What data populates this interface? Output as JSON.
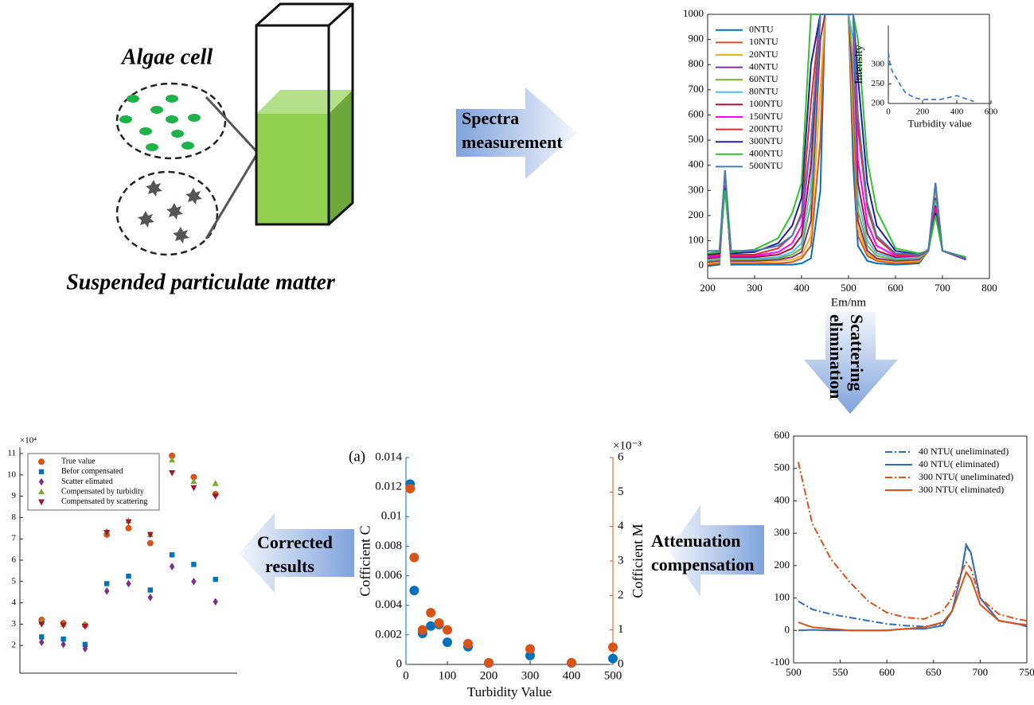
{
  "labels": {
    "algae": "Algae cell",
    "spm": "Suspended particulate matter"
  },
  "arrows": [
    {
      "lines": [
        "Spectra",
        "measurement"
      ]
    },
    {
      "lines": [
        "Scattering",
        "elimination"
      ]
    },
    {
      "lines": [
        "Attenuation",
        "compensation"
      ]
    },
    {
      "lines": [
        "Corrected",
        "results"
      ]
    }
  ],
  "chart_data": [
    {
      "type": "line",
      "xlabel": "Em/nm",
      "xlim": [
        200,
        800
      ],
      "ylim": [
        -50,
        1000
      ],
      "xticks": [
        200,
        300,
        400,
        500,
        600,
        700,
        800
      ],
      "yticks": [
        0,
        100,
        200,
        300,
        400,
        500,
        600,
        700,
        800,
        900,
        1000
      ],
      "legend": "upper left",
      "x": [
        200,
        225,
        237,
        250,
        300,
        350,
        380,
        400,
        420,
        440,
        450,
        460,
        500,
        510,
        520,
        540,
        560,
        600,
        650,
        670,
        685,
        700,
        750
      ],
      "series": [
        {
          "name": "0NTU",
          "color": "#0072BD",
          "values": [
            0,
            5,
            380,
            5,
            5,
            5,
            5,
            10,
            30,
            300,
            1000,
            1000,
            1000,
            400,
            80,
            20,
            10,
            5,
            10,
            60,
            330,
            60,
            25
          ]
        },
        {
          "name": "10NTU",
          "color": "#D95319",
          "values": [
            5,
            10,
            360,
            10,
            10,
            10,
            15,
            30,
            80,
            500,
            1000,
            1000,
            1000,
            500,
            120,
            40,
            20,
            10,
            15,
            60,
            300,
            60,
            25
          ]
        },
        {
          "name": "20NTU",
          "color": "#EDB120",
          "values": [
            10,
            15,
            350,
            15,
            15,
            20,
            25,
            40,
            120,
            700,
            1000,
            1000,
            1000,
            600,
            150,
            50,
            25,
            15,
            20,
            60,
            290,
            60,
            25
          ]
        },
        {
          "name": "40NTU",
          "color": "#7E2F8E",
          "values": [
            15,
            20,
            340,
            20,
            20,
            25,
            35,
            55,
            180,
            900,
            1000,
            1000,
            1000,
            700,
            180,
            60,
            30,
            20,
            25,
            60,
            270,
            60,
            25
          ]
        },
        {
          "name": "60NTU",
          "color": "#77AC30",
          "values": [
            20,
            25,
            330,
            25,
            25,
            30,
            45,
            70,
            250,
            1000,
            1000,
            1000,
            1000,
            800,
            220,
            80,
            40,
            25,
            30,
            60,
            260,
            60,
            30
          ]
        },
        {
          "name": "80NTU",
          "color": "#4DBEEE",
          "values": [
            25,
            30,
            330,
            30,
            30,
            35,
            55,
            90,
            320,
            1000,
            1000,
            1000,
            1000,
            900,
            270,
            100,
            50,
            30,
            35,
            60,
            250,
            60,
            30
          ]
        },
        {
          "name": "100NTU",
          "color": "#A2142F",
          "values": [
            30,
            35,
            320,
            35,
            35,
            45,
            70,
            120,
            400,
            1000,
            1000,
            1000,
            1000,
            1000,
            330,
            130,
            60,
            35,
            40,
            65,
            240,
            60,
            30
          ]
        },
        {
          "name": "150NTU",
          "color": "#FF00FF",
          "values": [
            35,
            40,
            320,
            40,
            40,
            55,
            90,
            160,
            500,
            1000,
            1000,
            1000,
            1000,
            1000,
            420,
            170,
            80,
            40,
            40,
            65,
            230,
            60,
            30
          ]
        },
        {
          "name": "200NTU",
          "color": "#E0282E",
          "values": [
            40,
            45,
            310,
            45,
            45,
            70,
            120,
            210,
            650,
            1000,
            1000,
            1000,
            1000,
            1000,
            550,
            230,
            110,
            45,
            40,
            60,
            220,
            60,
            30
          ]
        },
        {
          "name": "300NTU",
          "color": "#1F1F9C",
          "values": [
            45,
            50,
            310,
            50,
            55,
            90,
            160,
            270,
            800,
            1000,
            1000,
            1000,
            1000,
            1000,
            750,
            330,
            160,
            60,
            45,
            60,
            210,
            60,
            30
          ]
        },
        {
          "name": "400NTU",
          "color": "#30C030",
          "values": [
            50,
            55,
            300,
            55,
            65,
            110,
            210,
            330,
            1000,
            1000,
            1000,
            1000,
            1000,
            1000,
            900,
            420,
            220,
            70,
            50,
            60,
            200,
            60,
            35
          ]
        },
        {
          "name": "500NTU",
          "color": "#4A7AB5",
          "values": [
            60,
            60,
            380,
            60,
            60,
            80,
            120,
            200,
            500,
            1000,
            1000,
            1000,
            1000,
            1000,
            600,
            250,
            120,
            50,
            45,
            60,
            330,
            60,
            30
          ]
        }
      ]
    },
    {
      "type": "line",
      "xlabel": "Turbidity value",
      "ylabel": "Intensity",
      "xlim": [
        0,
        600
      ],
      "ylim": [
        200,
        400
      ],
      "xticks": [
        0,
        200,
        400,
        600
      ],
      "yticks": [
        200,
        250,
        300
      ],
      "x": [
        0,
        10,
        20,
        40,
        60,
        80,
        100,
        150,
        200,
        300,
        400,
        500
      ],
      "series": [
        {
          "color": "#2E6FB5",
          "line_style": "dashed",
          "values": [
            330,
            300,
            285,
            270,
            255,
            240,
            228,
            215,
            210,
            210,
            220,
            205
          ]
        }
      ]
    },
    {
      "type": "line",
      "xlim": [
        500,
        750
      ],
      "ylim": [
        -100,
        600
      ],
      "xticks": [
        500,
        550,
        600,
        650,
        700,
        750
      ],
      "yticks": [
        -100,
        0,
        100,
        200,
        300,
        400,
        500,
        600
      ],
      "legend": "upper right",
      "x": [
        505,
        520,
        540,
        560,
        580,
        600,
        620,
        640,
        660,
        670,
        680,
        685,
        690,
        700,
        720,
        740,
        750
      ],
      "series": [
        {
          "name": "40 NTU( uneliminated)",
          "color": "#2E6FB5",
          "line_style": "dashdot",
          "values": [
            90,
            65,
            50,
            40,
            30,
            20,
            15,
            12,
            20,
            60,
            180,
            260,
            240,
            100,
            30,
            20,
            15
          ]
        },
        {
          "name": "40 NTU( eliminated)",
          "color": "#2E6FB5",
          "line_style": "solid",
          "values": [
            0,
            2,
            0,
            0,
            0,
            0,
            5,
            5,
            15,
            60,
            180,
            265,
            240,
            100,
            30,
            20,
            12
          ]
        },
        {
          "name": "300 NTU( uneliminated)",
          "color": "#D95319",
          "line_style": "dashdot",
          "values": [
            520,
            330,
            220,
            150,
            90,
            55,
            40,
            35,
            60,
            100,
            180,
            210,
            190,
            100,
            50,
            35,
            30
          ]
        },
        {
          "name": "300 NTU( eliminated)",
          "color": "#D95319",
          "line_style": "solid",
          "values": [
            25,
            10,
            5,
            0,
            0,
            0,
            5,
            10,
            25,
            60,
            140,
            180,
            160,
            80,
            30,
            20,
            18
          ]
        }
      ]
    },
    {
      "type": "scatter",
      "panel_label": "(a)",
      "xlabel": "Turbidity Value",
      "ylabel": "Cofficient C",
      "y2label": "Cofficient M",
      "y2_exponent_label": "×10⁻³",
      "xlim": [
        0,
        500
      ],
      "ylim": [
        0,
        0.014
      ],
      "y2lim": [
        0,
        6
      ],
      "xticks": [
        0,
        100,
        200,
        300,
        400,
        500
      ],
      "yticks": [
        0,
        0.002,
        0.004,
        0.006,
        0.008,
        0.01,
        0.012,
        0.014
      ],
      "y2ticks": [
        0,
        1,
        2,
        3,
        4,
        5,
        6
      ],
      "x": [
        10,
        20,
        40,
        60,
        80,
        100,
        150,
        200,
        300,
        400,
        500
      ],
      "series": [
        {
          "color": "#0072BD",
          "marker": "circle",
          "values": [
            0.0122,
            0.005,
            0.0021,
            0.0026,
            0.0027,
            0.0015,
            0.0012,
            0.0001,
            0.0006,
            0.0001,
            0.0004
          ]
        },
        {
          "color": "#D95319",
          "marker": "circle",
          "axis": "y2",
          "values": [
            5.1,
            3.1,
            1.0,
            1.5,
            1.2,
            1.0,
            0.6,
            0.05,
            0.45,
            0.05,
            0.5
          ]
        }
      ]
    },
    {
      "type": "scatter",
      "y_exponent_label": "×10⁴",
      "xlim": [
        0,
        10
      ],
      "ylim": [
        0.7,
        11.3
      ],
      "yticks": [
        2,
        3,
        4,
        5,
        6,
        7,
        8,
        9,
        10,
        11
      ],
      "legend": "upper left",
      "x": [
        1,
        2,
        3,
        4,
        5,
        6,
        7,
        8,
        9
      ],
      "series": [
        {
          "name": "True value",
          "color": "#D95319",
          "marker": "circle",
          "values": [
            3.2,
            3.05,
            2.95,
            7.2,
            7.5,
            6.8,
            10.9,
            9.9,
            9.1
          ]
        },
        {
          "name": "Befor compensated",
          "color": "#0072BD",
          "marker": "square",
          "values": [
            2.4,
            2.3,
            2.05,
            4.9,
            5.25,
            4.6,
            6.25,
            5.8,
            5.1
          ]
        },
        {
          "name": "Scatter elimated",
          "color": "#7E2F8E",
          "marker": "diamond",
          "values": [
            2.15,
            2.05,
            1.85,
            4.55,
            4.9,
            4.25,
            5.7,
            5.0,
            4.05
          ]
        },
        {
          "name": "Compensated by turbidity",
          "color": "#77AC30",
          "marker": "triangle-up",
          "values": [
            3.1,
            3.0,
            3.0,
            7.35,
            7.85,
            7.2,
            10.7,
            9.7,
            9.6
          ]
        },
        {
          "name": "Compensated by scattering",
          "color": "#A2142F",
          "marker": "triangle-down",
          "values": [
            3.0,
            2.95,
            2.9,
            7.3,
            7.8,
            7.2,
            10.1,
            9.4,
            9.0
          ]
        }
      ]
    }
  ]
}
